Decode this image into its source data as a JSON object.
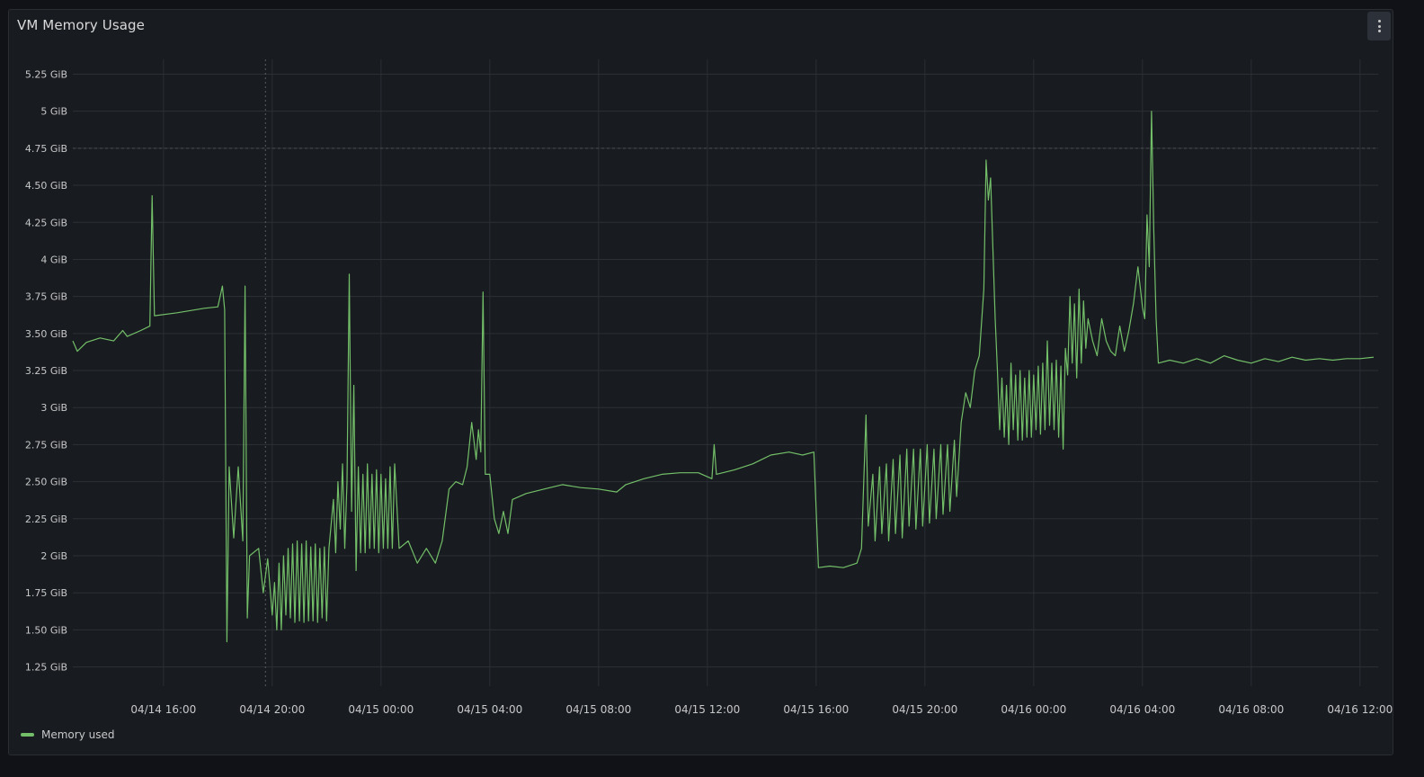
{
  "panel": {
    "title": "VM Memory Usage",
    "menu_icon": "kebab-menu-icon"
  },
  "colors": {
    "background": "#111217",
    "panel": "#181b1f",
    "grid": "#2c3035",
    "series": "#73bf69",
    "text": "#c7c8ca"
  },
  "chart_data": {
    "type": "line",
    "title": "VM Memory Usage",
    "xlabel": "",
    "ylabel": "",
    "y_unit": "GiB",
    "ylim": [
      1.12,
      5.35
    ],
    "xlim": [
      "04/14 12:40",
      "04/16 12:40"
    ],
    "grid": true,
    "legend_placement": "bottom-left",
    "y_ticks": [
      "1.25 GiB",
      "1.50 GiB",
      "1.75 GiB",
      "2 GiB",
      "2.25 GiB",
      "2.50 GiB",
      "2.75 GiB",
      "3 GiB",
      "3.25 GiB",
      "3.50 GiB",
      "3.75 GiB",
      "4 GiB",
      "4.25 GiB",
      "4.50 GiB",
      "4.75 GiB",
      "5 GiB",
      "5.25 GiB"
    ],
    "y_tick_values": [
      1.25,
      1.5,
      1.75,
      2,
      2.25,
      2.5,
      2.75,
      3,
      3.25,
      3.5,
      3.75,
      4,
      4.25,
      4.5,
      4.75,
      5,
      5.25
    ],
    "x_ticks": [
      "04/14 16:00",
      "04/14 20:00",
      "04/15 00:00",
      "04/15 04:00",
      "04/15 08:00",
      "04/15 12:00",
      "04/15 16:00",
      "04/15 20:00",
      "04/16 00:00",
      "04/16 04:00",
      "04/16 08:00",
      "04/16 12:00"
    ],
    "x_tick_values": [
      "04/14 16:00",
      "04/14 20:00",
      "04/15 00:00",
      "04/15 04:00",
      "04/15 08:00",
      "04/15 12:00",
      "04/15 16:00",
      "04/15 20:00",
      "04/16 00:00",
      "04/16 04:00",
      "04/16 08:00",
      "04/16 12:00"
    ],
    "threshold_line": 4.75,
    "cursor_line": "04/14 19:45",
    "series": [
      {
        "name": "Memory used",
        "color": "#73bf69",
        "points": [
          [
            "04/14 12:40",
            3.45
          ],
          [
            "04/14 12:50",
            3.38
          ],
          [
            "04/14 13:10",
            3.44
          ],
          [
            "04/14 13:40",
            3.47
          ],
          [
            "04/14 14:10",
            3.45
          ],
          [
            "04/14 14:30",
            3.52
          ],
          [
            "04/14 14:40",
            3.48
          ],
          [
            "04/14 15:10",
            3.52
          ],
          [
            "04/14 15:30",
            3.55
          ],
          [
            "04/14 15:35",
            4.43
          ],
          [
            "04/14 15:40",
            3.62
          ],
          [
            "04/14 16:30",
            3.64
          ],
          [
            "04/14 17:30",
            3.67
          ],
          [
            "04/14 18:00",
            3.68
          ],
          [
            "04/14 18:10",
            3.82
          ],
          [
            "04/14 18:15",
            3.66
          ],
          [
            "04/14 18:20",
            1.42
          ],
          [
            "04/14 18:25",
            2.6
          ],
          [
            "04/14 18:35",
            2.12
          ],
          [
            "04/14 18:45",
            2.6
          ],
          [
            "04/14 18:55",
            2.1
          ],
          [
            "04/14 19:00",
            3.82
          ],
          [
            "04/14 19:05",
            1.58
          ],
          [
            "04/14 19:10",
            2.0
          ],
          [
            "04/14 19:30",
            2.05
          ],
          [
            "04/14 19:40",
            1.75
          ],
          [
            "04/14 19:50",
            1.98
          ],
          [
            "04/14 20:00",
            1.6
          ],
          [
            "04/14 20:05",
            1.82
          ],
          [
            "04/14 20:10",
            1.5
          ],
          [
            "04/14 20:15",
            1.95
          ],
          [
            "04/14 20:20",
            1.5
          ],
          [
            "04/14 20:25",
            2.0
          ],
          [
            "04/14 20:30",
            1.6
          ],
          [
            "04/14 20:35",
            2.05
          ],
          [
            "04/14 20:40",
            1.58
          ],
          [
            "04/14 20:45",
            2.08
          ],
          [
            "04/14 20:50",
            1.55
          ],
          [
            "04/14 20:55",
            2.1
          ],
          [
            "04/14 21:00",
            1.56
          ],
          [
            "04/14 21:05",
            2.08
          ],
          [
            "04/14 21:10",
            1.55
          ],
          [
            "04/14 21:15",
            2.1
          ],
          [
            "04/14 21:20",
            1.56
          ],
          [
            "04/14 21:25",
            2.06
          ],
          [
            "04/14 21:30",
            1.56
          ],
          [
            "04/14 21:35",
            2.08
          ],
          [
            "04/14 21:40",
            1.55
          ],
          [
            "04/14 21:45",
            2.05
          ],
          [
            "04/14 21:50",
            1.58
          ],
          [
            "04/14 21:55",
            2.06
          ],
          [
            "04/14 22:00",
            1.56
          ],
          [
            "04/14 22:05",
            2.05
          ],
          [
            "04/14 22:15",
            2.38
          ],
          [
            "04/14 22:20",
            2.02
          ],
          [
            "04/14 22:25",
            2.5
          ],
          [
            "04/14 22:30",
            2.18
          ],
          [
            "04/14 22:35",
            2.62
          ],
          [
            "04/14 22:40",
            2.05
          ],
          [
            "04/14 22:45",
            2.5
          ],
          [
            "04/14 22:50",
            3.9
          ],
          [
            "04/14 22:55",
            2.3
          ],
          [
            "04/14 23:00",
            3.15
          ],
          [
            "04/14 23:05",
            1.9
          ],
          [
            "04/14 23:10",
            2.6
          ],
          [
            "04/14 23:15",
            2.02
          ],
          [
            "04/14 23:20",
            2.55
          ],
          [
            "04/14 23:25",
            2.02
          ],
          [
            "04/14 23:30",
            2.62
          ],
          [
            "04/14 23:35",
            2.05
          ],
          [
            "04/14 23:40",
            2.55
          ],
          [
            "04/14 23:45",
            2.05
          ],
          [
            "04/14 23:50",
            2.58
          ],
          [
            "04/14 23:55",
            2.02
          ],
          [
            "04/15 00:00",
            2.55
          ],
          [
            "04/15 00:05",
            2.05
          ],
          [
            "04/15 00:10",
            2.52
          ],
          [
            "04/15 00:15",
            2.05
          ],
          [
            "04/15 00:20",
            2.6
          ],
          [
            "04/15 00:25",
            2.05
          ],
          [
            "04/15 00:30",
            2.62
          ],
          [
            "04/15 00:40",
            2.05
          ],
          [
            "04/15 01:00",
            2.1
          ],
          [
            "04/15 01:20",
            1.95
          ],
          [
            "04/15 01:40",
            2.05
          ],
          [
            "04/15 02:00",
            1.95
          ],
          [
            "04/15 02:15",
            2.1
          ],
          [
            "04/15 02:30",
            2.45
          ],
          [
            "04/15 02:45",
            2.5
          ],
          [
            "04/15 03:00",
            2.48
          ],
          [
            "04/15 03:10",
            2.6
          ],
          [
            "04/15 03:20",
            2.9
          ],
          [
            "04/15 03:30",
            2.65
          ],
          [
            "04/15 03:35",
            2.85
          ],
          [
            "04/15 03:40",
            2.7
          ],
          [
            "04/15 03:45",
            3.78
          ],
          [
            "04/15 03:50",
            2.55
          ],
          [
            "04/15 04:00",
            2.55
          ],
          [
            "04/15 04:10",
            2.25
          ],
          [
            "04/15 04:20",
            2.15
          ],
          [
            "04/15 04:30",
            2.3
          ],
          [
            "04/15 04:40",
            2.15
          ],
          [
            "04/15 04:50",
            2.38
          ],
          [
            "04/15 05:20",
            2.42
          ],
          [
            "04/15 06:00",
            2.45
          ],
          [
            "04/15 06:40",
            2.48
          ],
          [
            "04/15 07:20",
            2.46
          ],
          [
            "04/15 08:00",
            2.45
          ],
          [
            "04/15 08:40",
            2.43
          ],
          [
            "04/15 09:00",
            2.48
          ],
          [
            "04/15 09:40",
            2.52
          ],
          [
            "04/15 10:20",
            2.55
          ],
          [
            "04/15 11:00",
            2.56
          ],
          [
            "04/15 11:40",
            2.56
          ],
          [
            "04/15 12:10",
            2.52
          ],
          [
            "04/15 12:15",
            2.75
          ],
          [
            "04/15 12:20",
            2.55
          ],
          [
            "04/15 13:00",
            2.58
          ],
          [
            "04/15 13:40",
            2.62
          ],
          [
            "04/15 14:20",
            2.68
          ],
          [
            "04/15 15:00",
            2.7
          ],
          [
            "04/15 15:30",
            2.68
          ],
          [
            "04/15 15:55",
            2.7
          ],
          [
            "04/15 16:05",
            1.92
          ],
          [
            "04/15 16:30",
            1.93
          ],
          [
            "04/15 17:00",
            1.92
          ],
          [
            "04/15 17:30",
            1.95
          ],
          [
            "04/15 17:40",
            2.05
          ],
          [
            "04/15 17:50",
            2.95
          ],
          [
            "04/15 17:55",
            2.2
          ],
          [
            "04/15 18:05",
            2.55
          ],
          [
            "04/15 18:10",
            2.1
          ],
          [
            "04/15 18:20",
            2.6
          ],
          [
            "04/15 18:25",
            2.15
          ],
          [
            "04/15 18:35",
            2.62
          ],
          [
            "04/15 18:40",
            2.1
          ],
          [
            "04/15 18:50",
            2.65
          ],
          [
            "04/15 18:55",
            2.15
          ],
          [
            "04/15 19:05",
            2.68
          ],
          [
            "04/15 19:10",
            2.12
          ],
          [
            "04/15 19:20",
            2.72
          ],
          [
            "04/15 19:25",
            2.2
          ],
          [
            "04/15 19:35",
            2.72
          ],
          [
            "04/15 19:40",
            2.18
          ],
          [
            "04/15 19:50",
            2.72
          ],
          [
            "04/15 19:55",
            2.2
          ],
          [
            "04/15 20:05",
            2.75
          ],
          [
            "04/15 20:10",
            2.22
          ],
          [
            "04/15 20:20",
            2.72
          ],
          [
            "04/15 20:25",
            2.25
          ],
          [
            "04/15 20:35",
            2.75
          ],
          [
            "04/15 20:40",
            2.28
          ],
          [
            "04/15 20:50",
            2.75
          ],
          [
            "04/15 20:55",
            2.3
          ],
          [
            "04/15 21:05",
            2.78
          ],
          [
            "04/15 21:10",
            2.4
          ],
          [
            "04/15 21:20",
            2.9
          ],
          [
            "04/15 21:30",
            3.1
          ],
          [
            "04/15 21:40",
            3.0
          ],
          [
            "04/15 21:50",
            3.25
          ],
          [
            "04/15 22:00",
            3.35
          ],
          [
            "04/15 22:10",
            3.8
          ],
          [
            "04/15 22:15",
            4.67
          ],
          [
            "04/15 22:20",
            4.4
          ],
          [
            "04/15 22:25",
            4.55
          ],
          [
            "04/15 22:35",
            3.6
          ],
          [
            "04/15 22:40",
            3.25
          ],
          [
            "04/15 22:45",
            2.85
          ],
          [
            "04/15 22:50",
            3.2
          ],
          [
            "04/15 22:55",
            2.8
          ],
          [
            "04/15 23:00",
            3.15
          ],
          [
            "04/15 23:05",
            2.75
          ],
          [
            "04/15 23:10",
            3.3
          ],
          [
            "04/15 23:15",
            2.85
          ],
          [
            "04/15 23:20",
            3.22
          ],
          [
            "04/15 23:25",
            2.78
          ],
          [
            "04/15 23:30",
            3.25
          ],
          [
            "04/15 23:35",
            2.78
          ],
          [
            "04/15 23:40",
            3.2
          ],
          [
            "04/15 23:45",
            2.8
          ],
          [
            "04/15 23:50",
            3.25
          ],
          [
            "04/15 23:55",
            2.8
          ],
          [
            "04/16 00:00",
            3.22
          ],
          [
            "04/16 00:05",
            2.85
          ],
          [
            "04/16 00:10",
            3.28
          ],
          [
            "04/16 00:15",
            2.82
          ],
          [
            "04/16 00:20",
            3.3
          ],
          [
            "04/16 00:25",
            2.85
          ],
          [
            "04/16 00:30",
            3.45
          ],
          [
            "04/16 00:35",
            2.88
          ],
          [
            "04/16 00:40",
            3.3
          ],
          [
            "04/16 00:45",
            2.85
          ],
          [
            "04/16 00:50",
            3.32
          ],
          [
            "04/16 00:55",
            2.8
          ],
          [
            "04/16 01:00",
            3.28
          ],
          [
            "04/16 01:05",
            2.72
          ],
          [
            "04/16 01:10",
            3.4
          ],
          [
            "04/16 01:15",
            3.22
          ],
          [
            "04/16 01:20",
            3.75
          ],
          [
            "04/16 01:25",
            3.3
          ],
          [
            "04/16 01:30",
            3.7
          ],
          [
            "04/16 01:35",
            3.2
          ],
          [
            "04/16 01:40",
            3.8
          ],
          [
            "04/16 01:45",
            3.3
          ],
          [
            "04/16 01:50",
            3.72
          ],
          [
            "04/16 01:55",
            3.4
          ],
          [
            "04/16 02:00",
            3.6
          ],
          [
            "04/16 02:10",
            3.45
          ],
          [
            "04/16 02:20",
            3.35
          ],
          [
            "04/16 02:30",
            3.6
          ],
          [
            "04/16 02:40",
            3.45
          ],
          [
            "04/16 02:50",
            3.38
          ],
          [
            "04/16 03:00",
            3.35
          ],
          [
            "04/16 03:10",
            3.55
          ],
          [
            "04/16 03:20",
            3.38
          ],
          [
            "04/16 03:30",
            3.52
          ],
          [
            "04/16 03:40",
            3.7
          ],
          [
            "04/16 03:50",
            3.95
          ],
          [
            "04/16 04:00",
            3.68
          ],
          [
            "04/16 04:05",
            3.6
          ],
          [
            "04/16 04:10",
            4.3
          ],
          [
            "04/16 04:15",
            3.95
          ],
          [
            "04/16 04:20",
            5.0
          ],
          [
            "04/16 04:25",
            4.2
          ],
          [
            "04/16 04:30",
            3.6
          ],
          [
            "04/16 04:35",
            3.3
          ],
          [
            "04/16 05:00",
            3.32
          ],
          [
            "04/16 05:30",
            3.3
          ],
          [
            "04/16 06:00",
            3.33
          ],
          [
            "04/16 06:30",
            3.3
          ],
          [
            "04/16 07:00",
            3.35
          ],
          [
            "04/16 07:30",
            3.32
          ],
          [
            "04/16 08:00",
            3.3
          ],
          [
            "04/16 08:30",
            3.33
          ],
          [
            "04/16 09:00",
            3.31
          ],
          [
            "04/16 09:30",
            3.34
          ],
          [
            "04/16 10:00",
            3.32
          ],
          [
            "04/16 10:30",
            3.33
          ],
          [
            "04/16 11:00",
            3.32
          ],
          [
            "04/16 11:30",
            3.33
          ],
          [
            "04/16 12:00",
            3.33
          ],
          [
            "04/16 12:30",
            3.34
          ]
        ]
      }
    ]
  }
}
